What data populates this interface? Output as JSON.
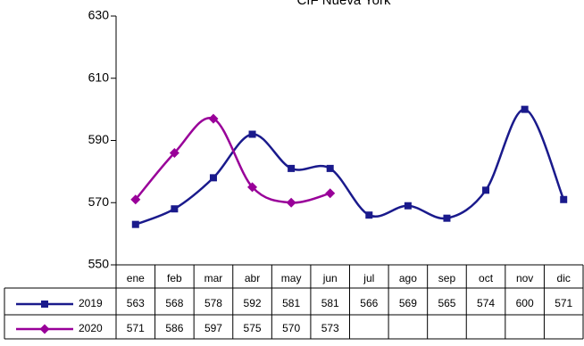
{
  "chart_data": {
    "type": "line",
    "title": "CIF Nueva York",
    "categories": [
      "ene",
      "feb",
      "mar",
      "abr",
      "may",
      "jun",
      "jul",
      "ago",
      "sep",
      "oct",
      "nov",
      "dic"
    ],
    "series": [
      {
        "name": "2019",
        "color": "#1a1a8c",
        "marker": "square",
        "values": [
          563,
          568,
          578,
          592,
          581,
          581,
          566,
          569,
          565,
          574,
          600,
          571
        ]
      },
      {
        "name": "2020",
        "color": "#990099",
        "marker": "diamond",
        "values": [
          571,
          586,
          597,
          575,
          570,
          573,
          null,
          null,
          null,
          null,
          null,
          null
        ]
      }
    ],
    "ylim": [
      550,
      630
    ],
    "yticks": [
      550,
      570,
      590,
      610,
      630
    ],
    "smooth": true,
    "data_table": true
  }
}
